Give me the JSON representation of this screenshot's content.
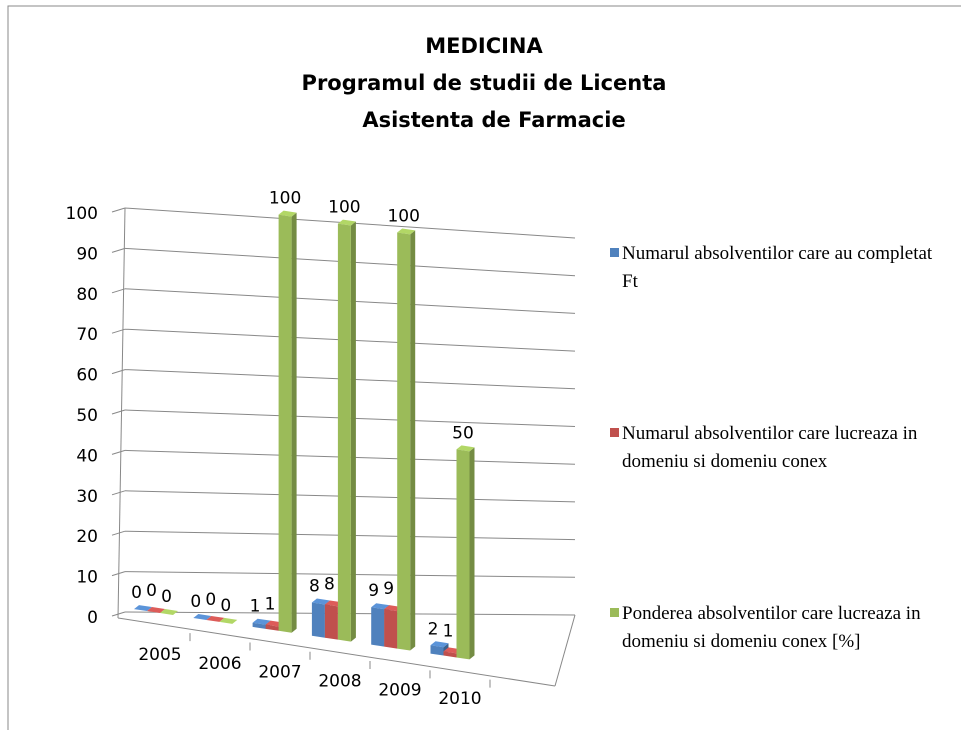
{
  "chart_data": {
    "type": "bar3d",
    "title": [
      "MEDICINA",
      "Programul de studii de Licenta",
      "Asistenta de Farmacie"
    ],
    "categories": [
      "2005",
      "2006",
      "2007",
      "2008",
      "2009",
      "2010"
    ],
    "series": [
      {
        "name": "Numarul absolventilor care au completat Ft",
        "color": "#4f81bd",
        "values": [
          0,
          0,
          1,
          8,
          9,
          2
        ]
      },
      {
        "name": "Numarul absolventilor care lucreaza in domeniu si domeniu conex",
        "color": "#c0504d",
        "values": [
          0,
          0,
          1,
          8,
          9,
          1
        ]
      },
      {
        "name": "Ponderea absolventilor care lucreaza in domeniu si domeniu conex [%]",
        "color": "#9bbb59",
        "values": [
          0,
          0,
          100,
          100,
          100,
          50
        ]
      }
    ],
    "ylim": [
      0,
      100
    ],
    "yticks": [
      0,
      10,
      20,
      30,
      40,
      50,
      60,
      70,
      80,
      90,
      100
    ],
    "grid": true,
    "legend": "right"
  }
}
